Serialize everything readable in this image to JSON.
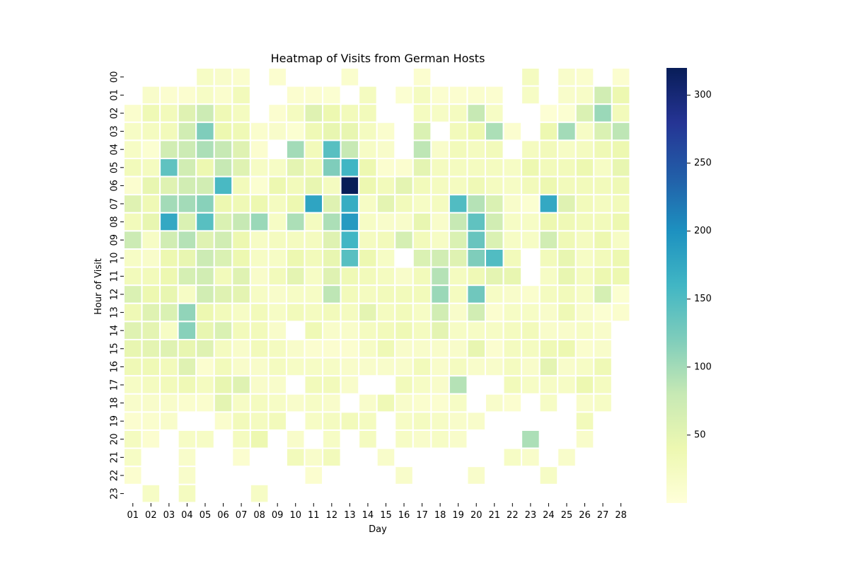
{
  "chart_data": {
    "type": "heatmap",
    "title": "Heatmap of Visits from German Hosts",
    "xlabel": "Day",
    "ylabel": "Hour of Visit",
    "x_categories": [
      "01",
      "02",
      "03",
      "04",
      "05",
      "06",
      "07",
      "08",
      "09",
      "10",
      "11",
      "12",
      "13",
      "14",
      "15",
      "16",
      "17",
      "18",
      "19",
      "20",
      "21",
      "22",
      "23",
      "24",
      "25",
      "26",
      "27",
      "28"
    ],
    "y_categories": [
      "00",
      "01",
      "02",
      "03",
      "04",
      "05",
      "06",
      "07",
      "08",
      "09",
      "10",
      "11",
      "12",
      "13",
      "14",
      "15",
      "16",
      "17",
      "18",
      "19",
      "20",
      "21",
      "22",
      "23"
    ],
    "colorbar": {
      "min": 0,
      "max": 320,
      "ticks": [
        50,
        100,
        150,
        200,
        250,
        300
      ]
    },
    "colormap": "YlGnBu",
    "values": [
      [
        null,
        null,
        null,
        null,
        20,
        15,
        12,
        null,
        10,
        null,
        null,
        null,
        12,
        null,
        null,
        null,
        10,
        null,
        null,
        null,
        null,
        null,
        25,
        null,
        15,
        12,
        null,
        10
      ],
      [
        null,
        15,
        10,
        10,
        20,
        12,
        30,
        null,
        null,
        10,
        10,
        8,
        null,
        25,
        null,
        8,
        25,
        10,
        10,
        12,
        10,
        null,
        20,
        null,
        15,
        18,
        70,
        40
      ],
      [
        12,
        35,
        30,
        55,
        75,
        35,
        25,
        null,
        10,
        25,
        55,
        40,
        30,
        30,
        null,
        null,
        25,
        20,
        25,
        80,
        20,
        null,
        null,
        5,
        8,
        60,
        105,
        30
      ],
      [
        20,
        25,
        30,
        70,
        120,
        40,
        35,
        12,
        15,
        8,
        35,
        45,
        45,
        25,
        12,
        null,
        60,
        null,
        30,
        40,
        95,
        10,
        null,
        40,
        100,
        20,
        60,
        85
      ],
      [
        20,
        8,
        70,
        75,
        95,
        80,
        55,
        10,
        null,
        100,
        30,
        145,
        80,
        20,
        15,
        null,
        85,
        15,
        30,
        25,
        30,
        null,
        25,
        30,
        20,
        25,
        35,
        40
      ],
      [
        30,
        25,
        140,
        70,
        40,
        80,
        55,
        20,
        20,
        50,
        35,
        120,
        160,
        40,
        10,
        10,
        50,
        25,
        25,
        25,
        25,
        20,
        40,
        30,
        30,
        40,
        20,
        45
      ],
      [
        10,
        45,
        55,
        70,
        70,
        155,
        30,
        8,
        40,
        30,
        45,
        25,
        320,
        40,
        30,
        50,
        30,
        25,
        25,
        35,
        25,
        20,
        30,
        40,
        30,
        30,
        30,
        35
      ],
      [
        55,
        35,
        100,
        100,
        115,
        40,
        35,
        40,
        25,
        40,
        180,
        55,
        170,
        20,
        50,
        30,
        20,
        25,
        150,
        90,
        60,
        15,
        8,
        175,
        55,
        30,
        25,
        30
      ],
      [
        30,
        45,
        175,
        60,
        145,
        60,
        80,
        105,
        20,
        95,
        25,
        95,
        190,
        20,
        15,
        15,
        45,
        15,
        80,
        140,
        70,
        20,
        20,
        40,
        35,
        30,
        30,
        40
      ],
      [
        75,
        20,
        70,
        90,
        55,
        70,
        40,
        20,
        25,
        25,
        25,
        55,
        160,
        25,
        30,
        65,
        30,
        20,
        60,
        135,
        60,
        20,
        20,
        70,
        35,
        25,
        40,
        20
      ],
      [
        20,
        15,
        40,
        45,
        75,
        60,
        40,
        20,
        20,
        40,
        30,
        45,
        145,
        40,
        20,
        null,
        60,
        70,
        55,
        120,
        150,
        30,
        null,
        30,
        45,
        20,
        30,
        40
      ],
      [
        30,
        30,
        40,
        65,
        70,
        30,
        55,
        15,
        30,
        50,
        20,
        55,
        35,
        30,
        25,
        15,
        30,
        90,
        25,
        35,
        50,
        45,
        null,
        20,
        45,
        25,
        40,
        40
      ],
      [
        60,
        40,
        45,
        20,
        70,
        55,
        50,
        20,
        15,
        20,
        20,
        85,
        30,
        25,
        30,
        30,
        30,
        105,
        25,
        130,
        20,
        15,
        12,
        25,
        30,
        20,
        65,
        8
      ],
      [
        35,
        55,
        60,
        110,
        40,
        30,
        20,
        30,
        20,
        30,
        25,
        30,
        25,
        50,
        25,
        30,
        20,
        70,
        15,
        70,
        10,
        20,
        20,
        15,
        35,
        15,
        8,
        12
      ],
      [
        55,
        50,
        20,
        115,
        45,
        60,
        30,
        30,
        15,
        null,
        35,
        15,
        15,
        25,
        30,
        35,
        25,
        50,
        20,
        20,
        20,
        25,
        30,
        15,
        15,
        20,
        15,
        null
      ],
      [
        45,
        50,
        55,
        45,
        55,
        25,
        15,
        30,
        25,
        15,
        10,
        10,
        10,
        20,
        35,
        15,
        15,
        15,
        15,
        45,
        10,
        25,
        25,
        35,
        40,
        12,
        15,
        null
      ],
      [
        35,
        35,
        30,
        55,
        10,
        30,
        15,
        15,
        25,
        20,
        20,
        20,
        15,
        15,
        15,
        15,
        30,
        15,
        25,
        15,
        15,
        25,
        15,
        50,
        15,
        20,
        35,
        null
      ],
      [
        20,
        25,
        30,
        35,
        25,
        45,
        55,
        15,
        15,
        null,
        30,
        30,
        15,
        null,
        null,
        30,
        20,
        15,
        90,
        null,
        null,
        30,
        20,
        20,
        20,
        40,
        25,
        null
      ],
      [
        15,
        15,
        15,
        12,
        12,
        50,
        20,
        25,
        20,
        15,
        20,
        15,
        null,
        15,
        35,
        15,
        12,
        10,
        20,
        null,
        15,
        10,
        null,
        20,
        null,
        15,
        20,
        null
      ],
      [
        10,
        12,
        15,
        null,
        null,
        12,
        30,
        25,
        30,
        null,
        20,
        25,
        30,
        25,
        null,
        20,
        25,
        20,
        15,
        15,
        null,
        null,
        null,
        null,
        null,
        30,
        null,
        null
      ],
      [
        25,
        10,
        null,
        20,
        20,
        null,
        25,
        40,
        null,
        15,
        null,
        20,
        null,
        25,
        null,
        20,
        15,
        20,
        15,
        null,
        null,
        null,
        95,
        null,
        null,
        15,
        null,
        null
      ],
      [
        20,
        null,
        null,
        15,
        null,
        null,
        10,
        null,
        null,
        30,
        15,
        30,
        null,
        null,
        15,
        null,
        null,
        null,
        null,
        null,
        null,
        20,
        15,
        null,
        15,
        null,
        null,
        null
      ],
      [
        10,
        null,
        null,
        15,
        null,
        null,
        null,
        null,
        null,
        null,
        10,
        null,
        null,
        null,
        null,
        15,
        null,
        null,
        null,
        15,
        null,
        null,
        null,
        20,
        null,
        null,
        null,
        null
      ],
      [
        null,
        20,
        null,
        25,
        null,
        null,
        null,
        20,
        null,
        null,
        null,
        null,
        null,
        null,
        null,
        null,
        null,
        null,
        null,
        null,
        null,
        null,
        null,
        null,
        null,
        null,
        null,
        null
      ]
    ]
  }
}
